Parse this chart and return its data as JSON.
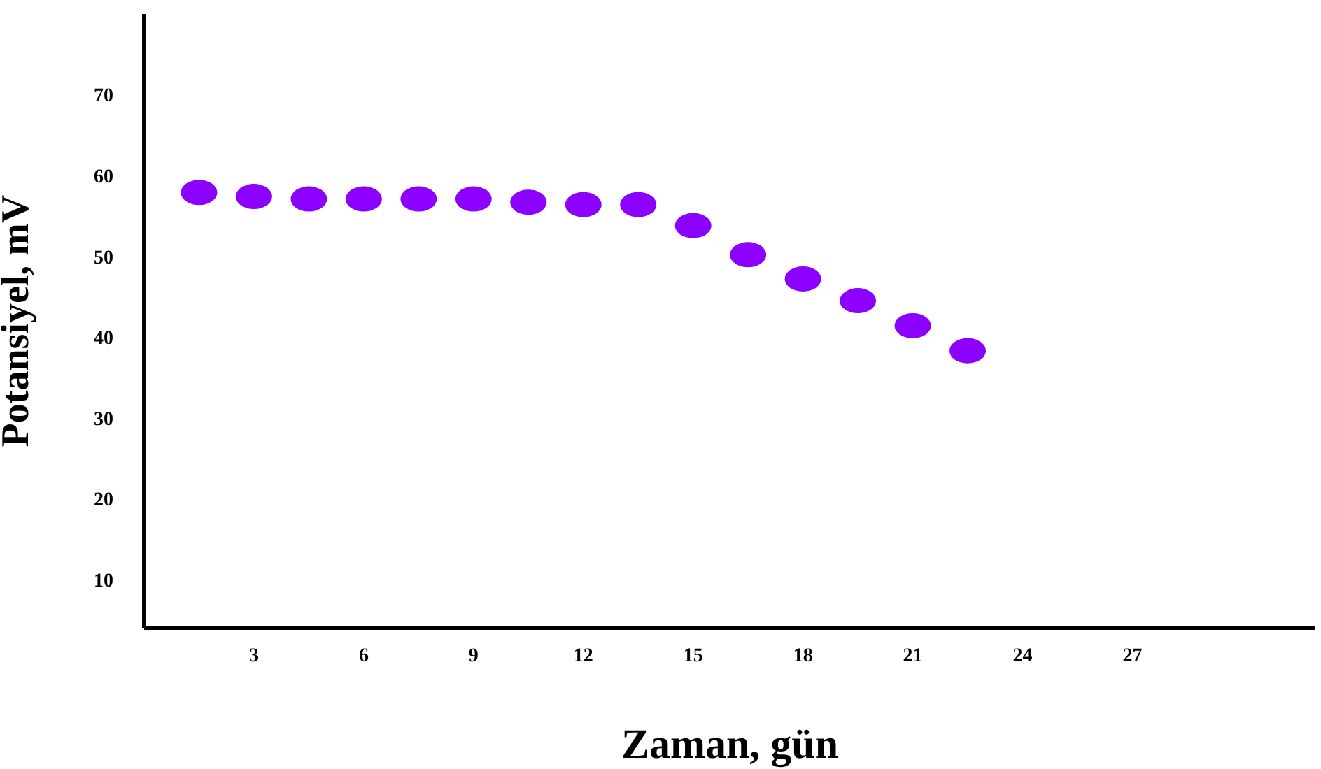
{
  "chart_data": {
    "type": "scatter",
    "xlabel": "Zaman, gün",
    "ylabel": "Potansiyel, mV",
    "x": [
      1.5,
      3,
      4.5,
      6,
      7.5,
      9,
      10.5,
      12,
      13.5,
      15,
      16.5,
      18,
      19.5,
      21,
      22.5
    ],
    "values": [
      57.9,
      57.4,
      57.1,
      57.1,
      57.1,
      57.1,
      56.7,
      56.4,
      56.4,
      53.8,
      50.2,
      47.2,
      44.5,
      41.4,
      38.3
    ],
    "color": "#8b00ff",
    "marker": "circle",
    "xlim": [
      0,
      32
    ],
    "xticks": [
      3,
      6,
      9,
      12,
      15,
      18,
      21,
      24,
      27
    ],
    "ylim": [
      4,
      80
    ],
    "yticks": [
      10,
      20,
      30,
      40,
      50,
      60,
      70
    ],
    "grid": false
  }
}
